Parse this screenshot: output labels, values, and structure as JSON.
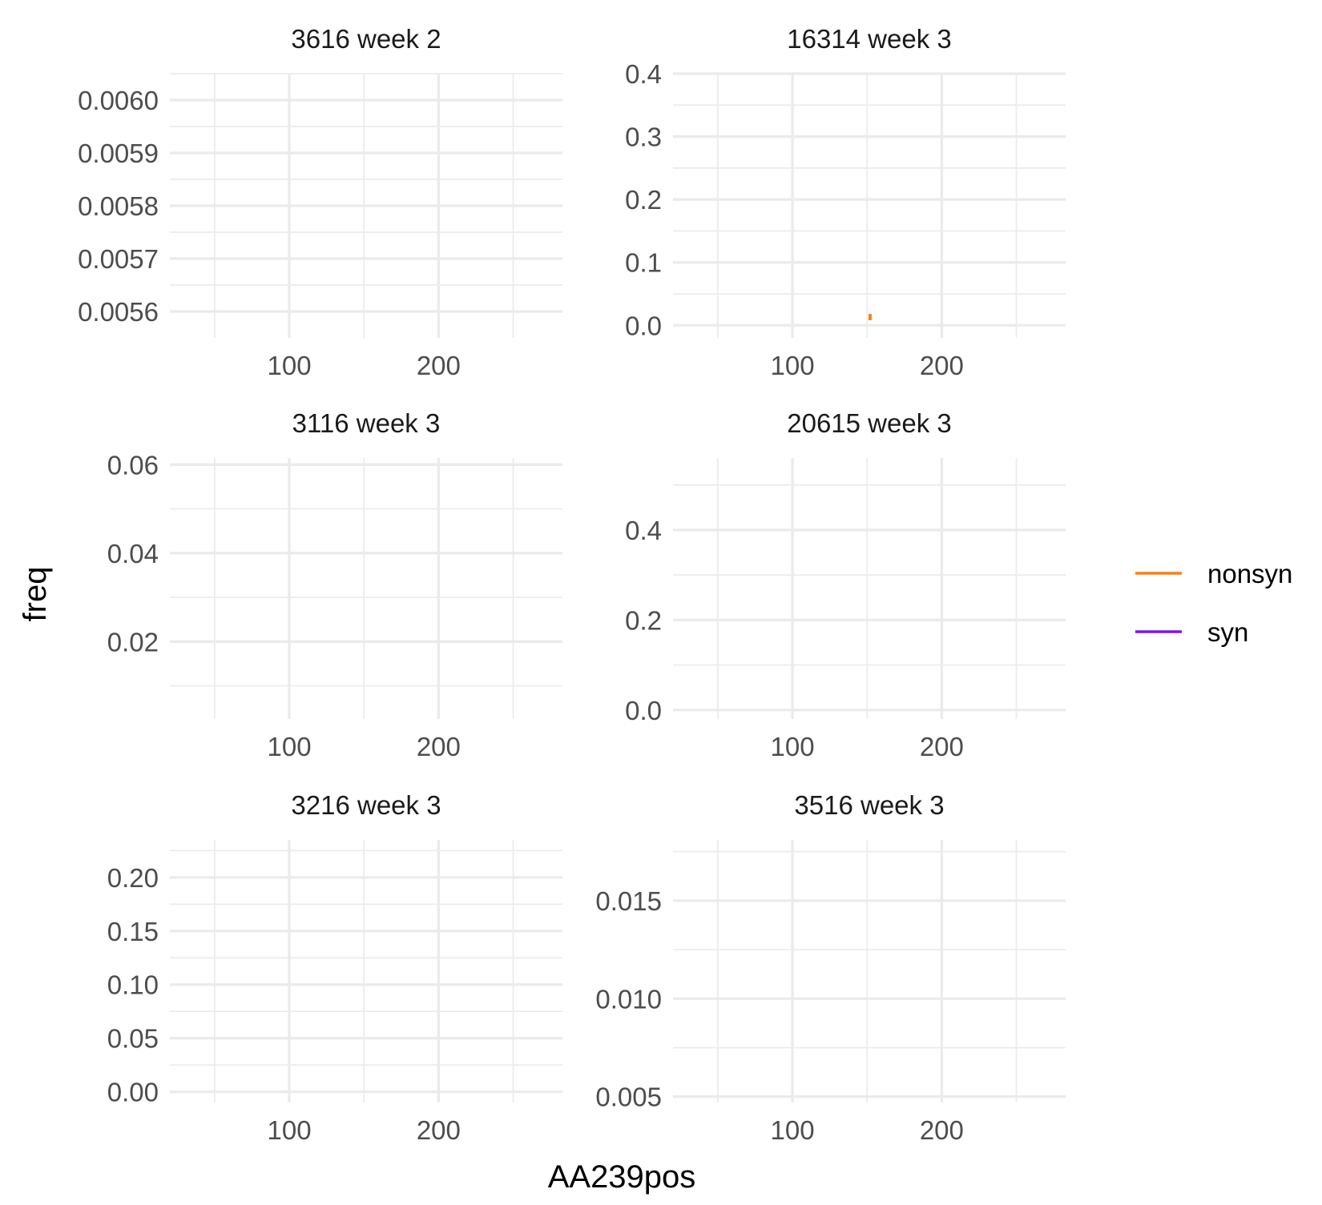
{
  "chart_data": {
    "type": "line",
    "layout": "facet_wrap",
    "xlabel": "AA239pos",
    "ylabel": "freq",
    "legend": {
      "placement": "right",
      "entries": [
        {
          "name": "nonsyn",
          "color": "#FF7F0E"
        },
        {
          "name": "syn",
          "color": "#8A0EEB"
        }
      ]
    },
    "grid": true,
    "xlim": [
      20,
      283
    ],
    "x_ticks": [
      100,
      200
    ],
    "x_tick_labels": [
      "100",
      "200"
    ],
    "x_minor": [
      50,
      150,
      250
    ],
    "panels": [
      {
        "title": "3616 week 2",
        "ylim": [
          0.00555,
          0.00605
        ],
        "y_ticks": [
          0.0056,
          0.0057,
          0.0058,
          0.0059,
          0.006
        ],
        "y_tick_labels": [
          "0.0056",
          "0.0057",
          "0.0058",
          "0.0059",
          "0.0060"
        ],
        "series": []
      },
      {
        "title": "16314 week 3",
        "ylim": [
          -0.02,
          0.4
        ],
        "y_ticks": [
          0.0,
          0.1,
          0.2,
          0.3,
          0.4
        ],
        "y_tick_labels": [
          "0.0",
          "0.1",
          "0.2",
          "0.3",
          "0.4"
        ],
        "series": [
          {
            "name": "nonsyn",
            "x": [
              152,
              152
            ],
            "y": [
              0.008,
              0.018
            ]
          }
        ]
      },
      {
        "title": "3116 week 3",
        "ylim": [
          0.0025,
          0.0615
        ],
        "y_ticks": [
          0.02,
          0.04,
          0.06
        ],
        "y_tick_labels": [
          "0.02",
          "0.04",
          "0.06"
        ],
        "series": []
      },
      {
        "title": "20615 week 3",
        "ylim": [
          -0.02,
          0.56
        ],
        "y_ticks": [
          0.0,
          0.2,
          0.4
        ],
        "y_tick_labels": [
          "0.0",
          "0.2",
          "0.4"
        ],
        "series": []
      },
      {
        "title": "3216 week 3",
        "ylim": [
          -0.01,
          0.235
        ],
        "y_ticks": [
          0.0,
          0.05,
          0.1,
          0.15,
          0.2
        ],
        "y_tick_labels": [
          "0.00",
          "0.05",
          "0.10",
          "0.15",
          "0.20"
        ],
        "series": []
      },
      {
        "title": "3516 week 3",
        "ylim": [
          0.0047,
          0.0181
        ],
        "y_ticks": [
          0.005,
          0.01,
          0.015
        ],
        "y_tick_labels": [
          "0.005",
          "0.010",
          "0.015"
        ],
        "series": []
      }
    ]
  }
}
